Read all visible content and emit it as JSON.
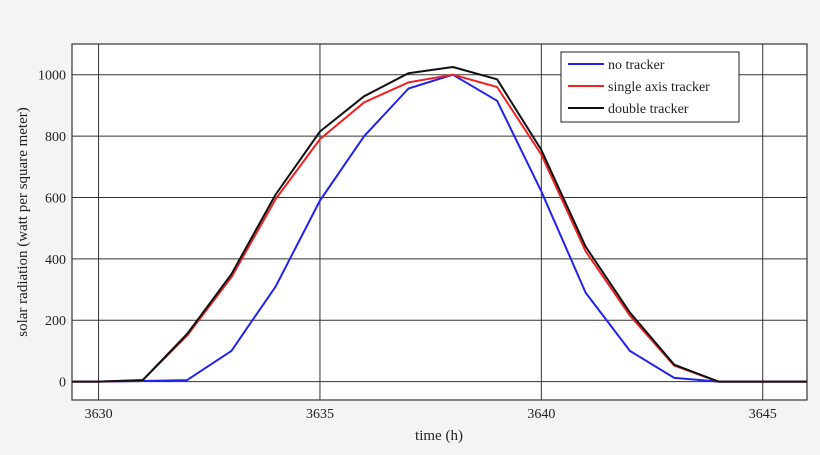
{
  "chart_data": {
    "type": "line",
    "title": "",
    "xlabel": "time (h)",
    "ylabel": "solar radiation (watt per square meter)",
    "xlim": [
      3629.4,
      3646.0
    ],
    "ylim": [
      -60,
      1100
    ],
    "xticks": [
      3630,
      3635,
      3640,
      3645
    ],
    "yticks": [
      0,
      200,
      400,
      600,
      800,
      1000
    ],
    "grid": true,
    "legend_position": "top-right",
    "x": [
      3629.4,
      3630,
      3631,
      3632,
      3633,
      3634,
      3635,
      3636,
      3637,
      3638,
      3639,
      3640,
      3641,
      3642,
      3643,
      3644,
      3645,
      3646
    ],
    "series": [
      {
        "name": "no tracker",
        "color": "#2222ee",
        "values": [
          0,
          0,
          2,
          5,
          100,
          310,
          590,
          800,
          955,
          1000,
          915,
          620,
          290,
          100,
          12,
          0,
          0,
          0
        ]
      },
      {
        "name": "single axis tracker",
        "color": "#ee2222",
        "values": [
          0,
          0,
          5,
          150,
          340,
          595,
          790,
          910,
          975,
          1000,
          960,
          740,
          425,
          215,
          52,
          0,
          0,
          0
        ]
      },
      {
        "name": "double tracker",
        "color": "#111111",
        "values": [
          0,
          0,
          5,
          155,
          350,
          610,
          815,
          930,
          1005,
          1025,
          985,
          755,
          440,
          225,
          55,
          0,
          0,
          0
        ]
      }
    ]
  }
}
